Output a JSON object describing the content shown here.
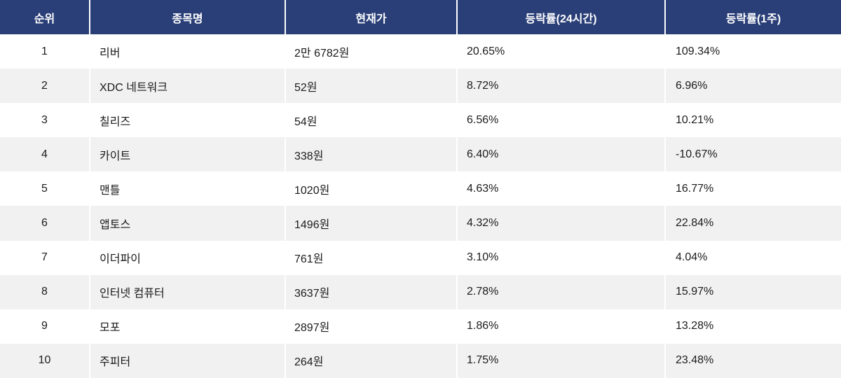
{
  "chart_data": {
    "type": "table",
    "title": "",
    "columns": [
      "순위",
      "종목명",
      "현재가",
      "등락률(24시간)",
      "등락률(1주)"
    ],
    "rows": [
      [
        "1",
        "리버",
        "2만 6782원",
        "20.65%",
        "109.34%"
      ],
      [
        "2",
        "XDC 네트워크",
        "52원",
        "8.72%",
        "6.96%"
      ],
      [
        "3",
        "칠리즈",
        "54원",
        "6.56%",
        "10.21%"
      ],
      [
        "4",
        "카이트",
        "338원",
        "6.40%",
        "-10.67%"
      ],
      [
        "5",
        "맨틀",
        "1020원",
        "4.63%",
        "16.77%"
      ],
      [
        "6",
        "앱토스",
        "1496원",
        "4.32%",
        "22.84%"
      ],
      [
        "7",
        "이더파이",
        "761원",
        "3.10%",
        "4.04%"
      ],
      [
        "8",
        "인터넷 컴퓨터",
        "3637원",
        "2.78%",
        "15.97%"
      ],
      [
        "9",
        "모포",
        "2897원",
        "1.86%",
        "13.28%"
      ],
      [
        "10",
        "주피터",
        "264원",
        "1.75%",
        "23.48%"
      ]
    ],
    "layout": {
      "striped": true,
      "stripe_pattern": "even-rows-gray",
      "header_alignment": "center",
      "rank_alignment": "center",
      "value_alignment": "left"
    }
  },
  "colors": {
    "header_bg": "#2a3f78",
    "header_text": "#ffffff",
    "row_bg": "#ffffff",
    "row_alt_bg": "#f1f1f1",
    "body_text": "#1b1b1b",
    "separator": "#ffffff"
  }
}
